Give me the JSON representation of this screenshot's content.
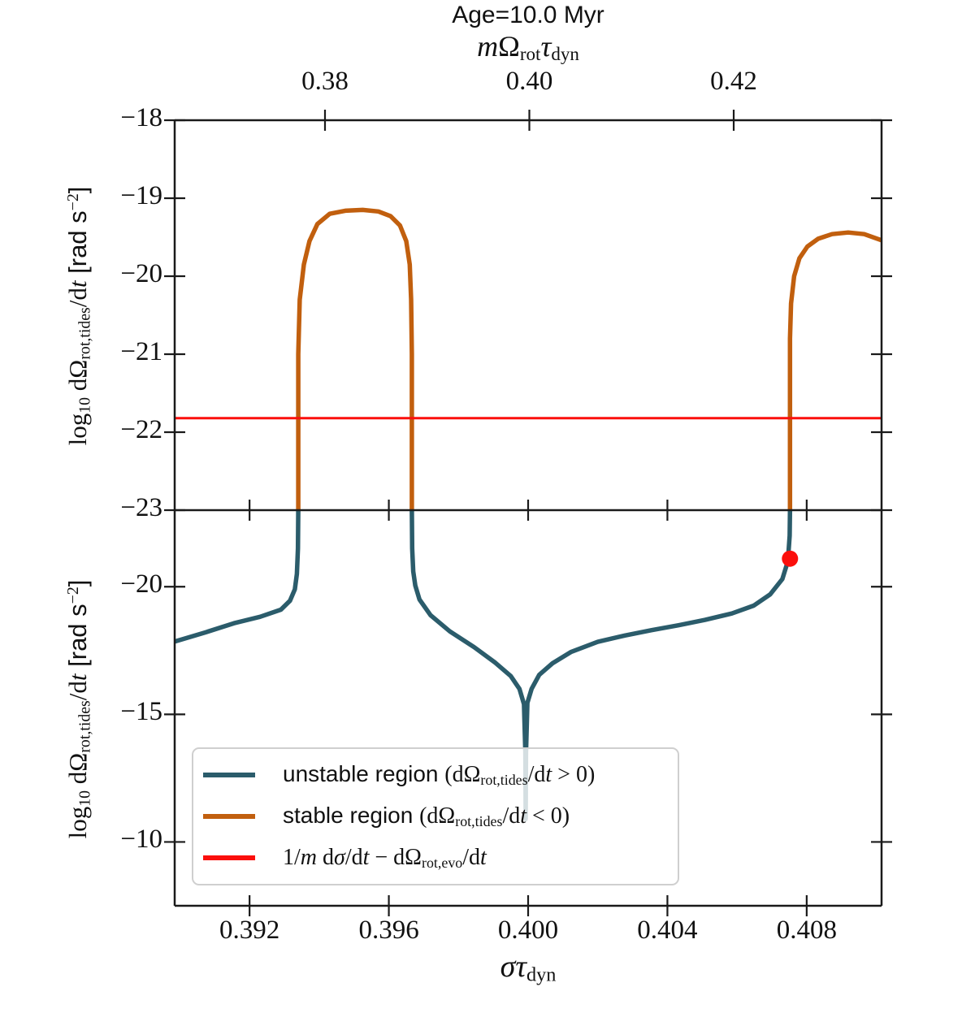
{
  "title": "Age=10.0 Myr",
  "colors": {
    "unstable": "#2b5c6b",
    "stable": "#c15f0e",
    "red_line": "#fb0f0c",
    "marker": "#fb0f0c",
    "spine": "#1a1a1a",
    "legend_border": "#cfcfcf"
  },
  "axes": {
    "top_x": {
      "xlim": [
        0.36529,
        0.43447
      ],
      "ticks": [
        {
          "v": 0.38,
          "label": "0.38"
        },
        {
          "v": 0.4,
          "label": "0.40"
        },
        {
          "v": 0.42,
          "label": "0.42"
        }
      ],
      "label_text": "mΩrotτdyn",
      "label_parts": [
        {
          "t": "m",
          "s": "it"
        },
        {
          "t": "Ω",
          "s": "ser"
        },
        {
          "t": "rot",
          "s": "sub"
        },
        {
          "t": "τ",
          "s": "it"
        },
        {
          "t": "dyn",
          "s": "sub"
        }
      ]
    },
    "bottom_x": {
      "xlim": [
        0.38985,
        0.41015
      ],
      "ticks": [
        {
          "v": 0.392,
          "label": "0.392"
        },
        {
          "v": 0.396,
          "label": "0.396"
        },
        {
          "v": 0.4,
          "label": "0.400"
        },
        {
          "v": 0.404,
          "label": "0.404"
        },
        {
          "v": 0.408,
          "label": "0.408"
        }
      ],
      "label_text": "στdyn",
      "label_parts": [
        {
          "t": "σ",
          "s": "it"
        },
        {
          "t": "τ",
          "s": "it"
        },
        {
          "t": "dyn",
          "s": "sub"
        }
      ]
    },
    "y_top": {
      "ylim": [
        -18,
        -23
      ],
      "ticks": [
        {
          "v": -18,
          "label": "−18"
        },
        {
          "v": -19,
          "label": "−19"
        },
        {
          "v": -20,
          "label": "−20"
        },
        {
          "v": -21,
          "label": "−21"
        },
        {
          "v": -22,
          "label": "−22"
        },
        {
          "v": -23,
          "label": "−23"
        }
      ],
      "label_text": "log10 dΩrot,tides/dt [rad s−2]",
      "label_parts": [
        {
          "t": "log",
          "s": "ser"
        },
        {
          "t": "10",
          "s": "sub"
        },
        {
          "t": " dΩ",
          "s": "ser"
        },
        {
          "t": "rot,tides",
          "s": "sub"
        },
        {
          "t": "/d",
          "s": "ser"
        },
        {
          "t": "t",
          "s": "it"
        },
        {
          "t": " [rad s",
          "s": "sans"
        },
        {
          "t": "−2",
          "s": "sup"
        },
        {
          "t": "]",
          "s": "sans"
        }
      ]
    },
    "y_bottom": {
      "ylim": [
        -23,
        -7.5
      ],
      "ticks": [
        {
          "v": -20,
          "label": "−20"
        },
        {
          "v": -15,
          "label": "−15"
        },
        {
          "v": -10,
          "label": "−10"
        }
      ],
      "label_text": "log10 dΩrot,tides/dt [rad s−2]",
      "label_parts": [
        {
          "t": "log",
          "s": "ser"
        },
        {
          "t": "10",
          "s": "sub"
        },
        {
          "t": " dΩ",
          "s": "ser"
        },
        {
          "t": "rot,tides",
          "s": "sub"
        },
        {
          "t": "/d",
          "s": "ser"
        },
        {
          "t": "t",
          "s": "it"
        },
        {
          "t": " [rad s",
          "s": "sans"
        },
        {
          "t": "−2",
          "s": "sup"
        },
        {
          "t": "]",
          "s": "sans"
        }
      ]
    }
  },
  "legend": {
    "items": [
      {
        "key": "unstable",
        "color_ref": "unstable",
        "text": "unstable region (dΩrot,tides/dt > 0)",
        "parts": [
          {
            "t": "unstable region ",
            "s": "sans"
          },
          {
            "t": "(dΩ",
            "s": "ser"
          },
          {
            "t": "rot,tides",
            "s": "sub"
          },
          {
            "t": "/d",
            "s": "ser"
          },
          {
            "t": "t",
            "s": "it"
          },
          {
            "t": " > 0)",
            "s": "ser"
          }
        ]
      },
      {
        "key": "stable",
        "color_ref": "stable",
        "text": "stable region (dΩrot,tides/dt < 0)",
        "parts": [
          {
            "t": "stable region ",
            "s": "sans"
          },
          {
            "t": "(dΩ",
            "s": "ser"
          },
          {
            "t": "rot,tides",
            "s": "sub"
          },
          {
            "t": "/d",
            "s": "ser"
          },
          {
            "t": "t",
            "s": "it"
          },
          {
            "t": " < 0)",
            "s": "ser"
          }
        ]
      },
      {
        "key": "threshold",
        "color_ref": "red_line",
        "text": "1/m dσ/dt − dΩrot,evo/dt",
        "parts": [
          {
            "t": "1/",
            "s": "ser"
          },
          {
            "t": "m",
            "s": "it"
          },
          {
            "t": " d",
            "s": "ser"
          },
          {
            "t": "σ",
            "s": "it"
          },
          {
            "t": "/d",
            "s": "ser"
          },
          {
            "t": "t",
            "s": "it"
          },
          {
            "t": " − dΩ",
            "s": "ser"
          },
          {
            "t": "rot,evo",
            "s": "sub"
          },
          {
            "t": "/d",
            "s": "ser"
          },
          {
            "t": "t",
            "s": "it"
          }
        ]
      }
    ]
  },
  "chart_data": {
    "type": "line",
    "title": "Age=10.0 Myr",
    "top_xlabel": "m Ω_rot τ_dyn",
    "xlabel": "σ τ_dyn",
    "ylabel": "log10 dΩ_rot,tides/dt [rad s^-2]",
    "grid": false,
    "legend_position": "lower left",
    "x_axis": {
      "xlim": [
        0.38985,
        0.41015
      ],
      "ticks": [
        0.392,
        0.396,
        0.4,
        0.404,
        0.408
      ]
    },
    "top_x_axis": {
      "xlim": [
        0.36529,
        0.43447
      ],
      "ticks": [
        0.38,
        0.4,
        0.42
      ]
    },
    "panels": [
      {
        "id": "top",
        "ylim": [
          -18,
          -23
        ],
        "yticks": [
          -18,
          -19,
          -20,
          -21,
          -22,
          -23
        ],
        "series": [
          {
            "name": "stable region left lobe",
            "legend": "stable region (dΩrot,tides/dt < 0)",
            "color_ref": "stable",
            "points": [
              [
                0.3934,
                -23.0
              ],
              [
                0.3934,
                -21.0
              ],
              [
                0.39344,
                -20.3
              ],
              [
                0.39356,
                -19.85
              ],
              [
                0.39372,
                -19.55
              ],
              [
                0.39395,
                -19.33
              ],
              [
                0.3943,
                -19.2
              ],
              [
                0.39475,
                -19.16
              ],
              [
                0.39525,
                -19.15
              ],
              [
                0.3957,
                -19.17
              ],
              [
                0.39605,
                -19.23
              ],
              [
                0.39632,
                -19.35
              ],
              [
                0.3965,
                -19.55
              ],
              [
                0.3966,
                -19.85
              ],
              [
                0.39664,
                -20.3
              ],
              [
                0.39666,
                -21.0
              ],
              [
                0.39666,
                -23.0
              ]
            ]
          },
          {
            "name": "stable region right lobe",
            "legend": "stable region (dΩrot,tides/dt < 0)",
            "color_ref": "stable",
            "points": [
              [
                0.40752,
                -23.0
              ],
              [
                0.40752,
                -20.8
              ],
              [
                0.40755,
                -20.35
              ],
              [
                0.40764,
                -20.0
              ],
              [
                0.40779,
                -19.77
              ],
              [
                0.40802,
                -19.62
              ],
              [
                0.40833,
                -19.52
              ],
              [
                0.40873,
                -19.46
              ],
              [
                0.40919,
                -19.44
              ],
              [
                0.40965,
                -19.46
              ],
              [
                0.41015,
                -19.54
              ]
            ]
          },
          {
            "name": "threshold line",
            "legend": "1/m dσ/dt − dΩrot,evo/dt",
            "color_ref": "red_line",
            "hline": -21.82
          }
        ]
      },
      {
        "id": "bottom",
        "ylim": [
          -23,
          -7.5
        ],
        "inverted": true,
        "yticks": [
          -20,
          -15,
          -10
        ],
        "series": [
          {
            "name": "unstable region left segment",
            "legend": "unstable region (dΩrot,tides/dt > 0)",
            "color_ref": "unstable",
            "points": [
              [
                0.38985,
                -17.85
              ],
              [
                0.39075,
                -18.22
              ],
              [
                0.39155,
                -18.57
              ],
              [
                0.3923,
                -18.82
              ],
              [
                0.3929,
                -19.1
              ],
              [
                0.39316,
                -19.45
              ],
              [
                0.3933,
                -19.9
              ],
              [
                0.39336,
                -20.5
              ],
              [
                0.39339,
                -21.5
              ],
              [
                0.3934,
                -23.0
              ]
            ]
          },
          {
            "name": "unstable region main segment",
            "legend": "unstable region (dΩrot,tides/dt > 0)",
            "color_ref": "unstable",
            "points": [
              [
                0.39666,
                -23.0
              ],
              [
                0.39667,
                -21.5
              ],
              [
                0.3967,
                -20.6
              ],
              [
                0.39676,
                -20.05
              ],
              [
                0.39688,
                -19.5
              ],
              [
                0.3972,
                -18.88
              ],
              [
                0.39775,
                -18.25
              ],
              [
                0.39845,
                -17.63
              ],
              [
                0.39906,
                -17.02
              ],
              [
                0.3995,
                -16.5
              ],
              [
                0.39975,
                -16.0
              ],
              [
                0.39988,
                -15.4
              ],
              [
                0.39992,
                -13.5
              ],
              [
                0.39993,
                -10.9
              ],
              [
                0.39994,
                -13.5
              ],
              [
                0.39998,
                -15.45
              ],
              [
                0.4001,
                -16.0
              ],
              [
                0.40032,
                -16.55
              ],
              [
                0.4007,
                -17.0
              ],
              [
                0.40124,
                -17.45
              ],
              [
                0.402,
                -17.84
              ],
              [
                0.40278,
                -18.09
              ],
              [
                0.40355,
                -18.3
              ],
              [
                0.40432,
                -18.49
              ],
              [
                0.40508,
                -18.7
              ],
              [
                0.40585,
                -18.95
              ],
              [
                0.40648,
                -19.26
              ],
              [
                0.40695,
                -19.7
              ],
              [
                0.4073,
                -20.3
              ],
              [
                0.40746,
                -21.0
              ],
              [
                0.40751,
                -22.0
              ],
              [
                0.40752,
                -23.0
              ]
            ]
          }
        ],
        "marker": {
          "x": 0.40752,
          "y": -21.1,
          "color_ref": "marker",
          "r": 10
        }
      }
    ]
  }
}
